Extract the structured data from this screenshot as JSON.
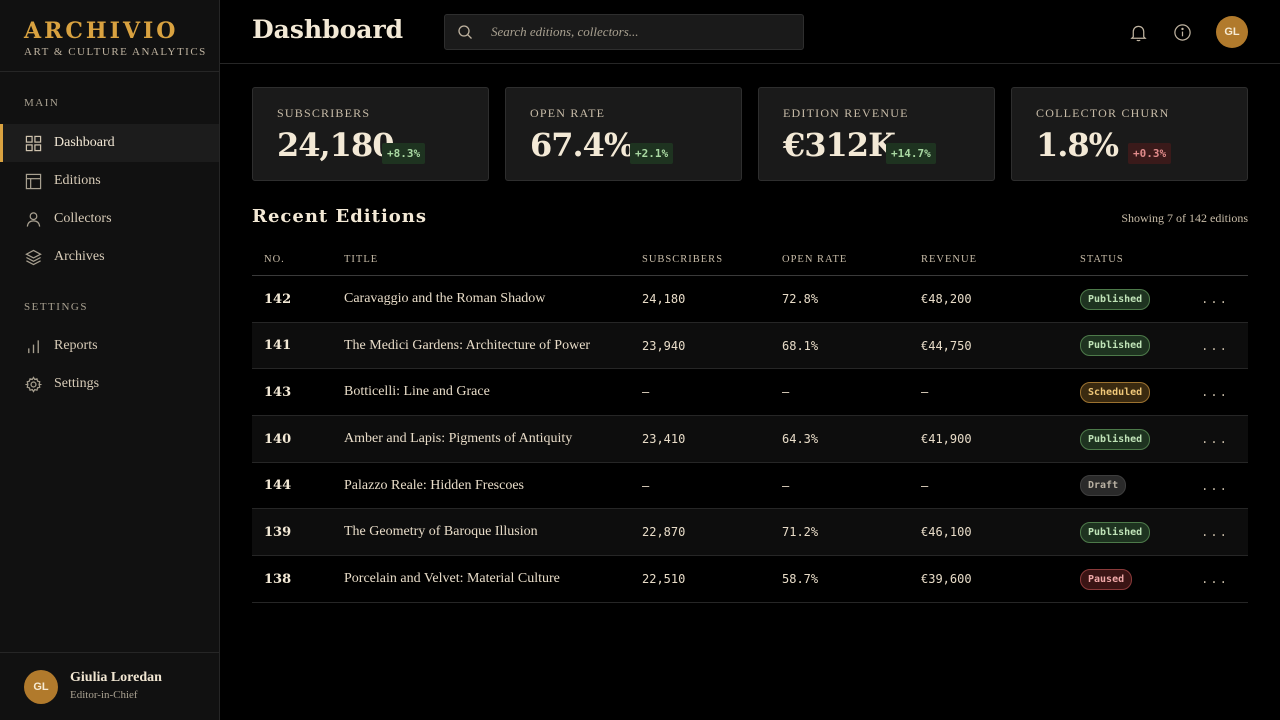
{
  "brand": {
    "name": "ARCHIVIO",
    "subtitle": "ART & CULTURE ANALYTICS"
  },
  "sidebar": {
    "main_label": "MAIN",
    "settings_label": "SETTINGS",
    "main_items": [
      {
        "label": "Dashboard",
        "icon": "grid-icon",
        "active": true
      },
      {
        "label": "Editions",
        "icon": "layout-icon"
      },
      {
        "label": "Collectors",
        "icon": "user-icon"
      },
      {
        "label": "Archives",
        "icon": "layers-icon"
      }
    ],
    "settings_items": [
      {
        "label": "Reports",
        "icon": "bar-chart-icon"
      },
      {
        "label": "Settings",
        "icon": "gear-icon"
      }
    ],
    "user": {
      "initials": "GL",
      "name": "Giulia Loredan",
      "role": "Editor-in-Chief"
    }
  },
  "header": {
    "title": "Dashboard",
    "search_placeholder": "Search editions, collectors...",
    "avatar_initials": "GL"
  },
  "kpis": [
    {
      "label": "SUBSCRIBERS",
      "value": "24,180",
      "delta": "+8.3%",
      "trend": "up"
    },
    {
      "label": "OPEN RATE",
      "value": "67.4%",
      "delta": "+2.1%",
      "trend": "up"
    },
    {
      "label": "EDITION REVENUE",
      "value": "€312K",
      "delta": "+14.7%",
      "trend": "up"
    },
    {
      "label": "COLLECTOR CHURN",
      "value": "1.8%",
      "delta": "+0.3%",
      "trend": "down"
    }
  ],
  "editions": {
    "title": "Recent Editions",
    "showing": "Showing 7 of 142 editions",
    "columns": [
      "NO.",
      "TITLE",
      "SUBSCRIBERS",
      "OPEN RATE",
      "REVENUE",
      "STATUS"
    ],
    "more_label": "...",
    "rows": [
      {
        "no": "142",
        "title": "Caravaggio and the Roman Shadow",
        "subscribers": "24,180",
        "open_rate": "72.8%",
        "revenue": "€48,200",
        "status": "Published"
      },
      {
        "no": "141",
        "title": "The Medici Gardens: Architecture of Power",
        "subscribers": "23,940",
        "open_rate": "68.1%",
        "revenue": "€44,750",
        "status": "Published"
      },
      {
        "no": "143",
        "title": "Botticelli: Line and Grace",
        "subscribers": "—",
        "open_rate": "—",
        "revenue": "—",
        "status": "Scheduled"
      },
      {
        "no": "140",
        "title": "Amber and Lapis: Pigments of Antiquity",
        "subscribers": "23,410",
        "open_rate": "64.3%",
        "revenue": "€41,900",
        "status": "Published"
      },
      {
        "no": "144",
        "title": "Palazzo Reale: Hidden Frescoes",
        "subscribers": "—",
        "open_rate": "—",
        "revenue": "—",
        "status": "Draft"
      },
      {
        "no": "139",
        "title": "The Geometry of Baroque Illusion",
        "subscribers": "22,870",
        "open_rate": "71.2%",
        "revenue": "€46,100",
        "status": "Published"
      },
      {
        "no": "138",
        "title": "Porcelain and Velvet: Material Culture",
        "subscribers": "22,510",
        "open_rate": "58.7%",
        "revenue": "€39,600",
        "status": "Paused"
      }
    ]
  },
  "colors": {
    "accent": "#d9a240",
    "background": "#000000",
    "panel": "#1a1a1a",
    "status_published": "#bfe3b7",
    "status_scheduled": "#f0c879",
    "status_draft": "#b8b0a2",
    "status_paused": "#f0a8a8"
  }
}
